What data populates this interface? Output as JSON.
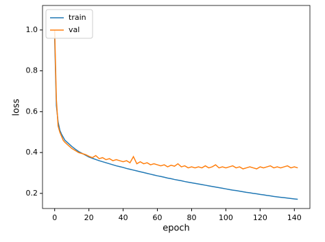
{
  "chart_data": {
    "type": "line",
    "xlabel": "epoch",
    "ylabel": "loss",
    "x": [
      0,
      1,
      2,
      3,
      4,
      5,
      6,
      8,
      10,
      12,
      14,
      16,
      18,
      20,
      22,
      24,
      26,
      28,
      30,
      32,
      34,
      36,
      38,
      40,
      42,
      44,
      46,
      48,
      50,
      52,
      54,
      56,
      58,
      60,
      62,
      64,
      66,
      68,
      70,
      72,
      74,
      76,
      78,
      80,
      82,
      84,
      86,
      88,
      90,
      92,
      94,
      96,
      98,
      100,
      102,
      104,
      106,
      108,
      110,
      112,
      114,
      116,
      118,
      120,
      122,
      124,
      126,
      128,
      130,
      132,
      134,
      136,
      138,
      140,
      142
    ],
    "series": [
      {
        "name": "train",
        "color": "#1f77b4",
        "values": [
          0.96,
          0.63,
          0.55,
          0.51,
          0.49,
          0.475,
          0.46,
          0.445,
          0.43,
          0.417,
          0.405,
          0.396,
          0.387,
          0.378,
          0.372,
          0.366,
          0.36,
          0.355,
          0.35,
          0.345,
          0.34,
          0.335,
          0.331,
          0.327,
          0.322,
          0.318,
          0.314,
          0.31,
          0.306,
          0.302,
          0.298,
          0.294,
          0.29,
          0.286,
          0.283,
          0.279,
          0.275,
          0.272,
          0.268,
          0.265,
          0.262,
          0.258,
          0.255,
          0.252,
          0.249,
          0.246,
          0.243,
          0.24,
          0.237,
          0.234,
          0.231,
          0.228,
          0.225,
          0.222,
          0.219,
          0.216,
          0.214,
          0.211,
          0.208,
          0.205,
          0.203,
          0.2,
          0.198,
          0.195,
          0.193,
          0.19,
          0.188,
          0.185,
          0.183,
          0.181,
          0.179,
          0.177,
          0.175,
          0.173,
          0.171
        ]
      },
      {
        "name": "val",
        "color": "#ff7f0e",
        "values": [
          1.0,
          0.66,
          0.53,
          0.5,
          0.48,
          0.46,
          0.45,
          0.435,
          0.42,
          0.41,
          0.4,
          0.395,
          0.39,
          0.382,
          0.375,
          0.385,
          0.37,
          0.375,
          0.365,
          0.37,
          0.36,
          0.365,
          0.36,
          0.355,
          0.36,
          0.35,
          0.38,
          0.345,
          0.355,
          0.345,
          0.35,
          0.34,
          0.345,
          0.34,
          0.335,
          0.34,
          0.33,
          0.338,
          0.333,
          0.345,
          0.33,
          0.335,
          0.325,
          0.33,
          0.325,
          0.33,
          0.325,
          0.335,
          0.325,
          0.33,
          0.34,
          0.325,
          0.33,
          0.325,
          0.33,
          0.335,
          0.325,
          0.33,
          0.32,
          0.325,
          0.33,
          0.325,
          0.32,
          0.33,
          0.325,
          0.33,
          0.335,
          0.325,
          0.33,
          0.325,
          0.33,
          0.335,
          0.325,
          0.33,
          0.325
        ]
      }
    ],
    "xlim": [
      -7.1,
      149.1
    ],
    "xticks": [
      0,
      20,
      40,
      60,
      80,
      100,
      120,
      140
    ],
    "ylim": [
      0.126,
      1.12
    ],
    "yticks": [
      0.2,
      0.4,
      0.6,
      0.8,
      {
        "value": 1,
        "label": "1.0"
      }
    ],
    "legend": "upper left"
  }
}
